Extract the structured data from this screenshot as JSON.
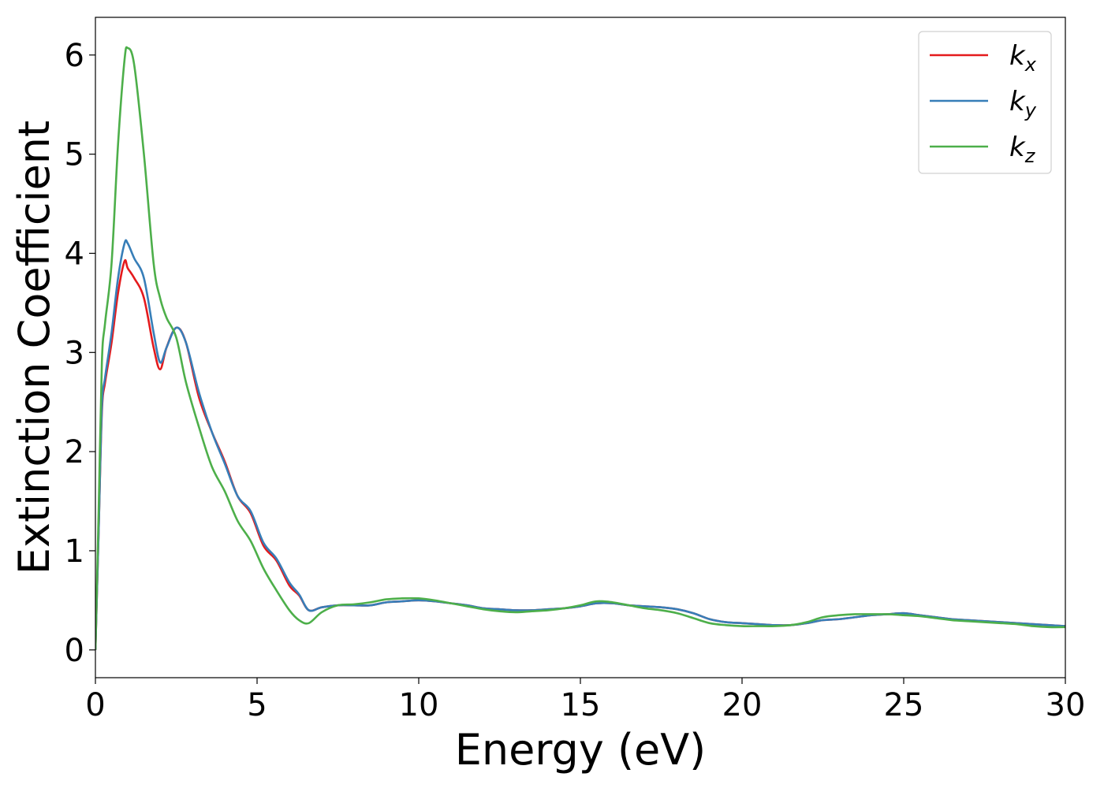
{
  "chart_data": {
    "type": "line",
    "xlabel": "Energy (eV)",
    "ylabel": "Extinction Coefficient",
    "xlim": [
      0,
      30
    ],
    "ylim": [
      -0.28,
      6.38
    ],
    "xticks": [
      0,
      5,
      10,
      15,
      20,
      25,
      30
    ],
    "yticks": [
      0,
      1,
      2,
      3,
      4,
      5,
      6
    ],
    "xtick_labels": [
      "0",
      "5",
      "10",
      "15",
      "20",
      "25",
      "30"
    ],
    "ytick_labels": [
      "0",
      "1",
      "2",
      "3",
      "4",
      "5",
      "6"
    ],
    "grid": false,
    "legend_position": "top-right",
    "series": [
      {
        "name": "k",
        "subscript": "x",
        "color": "#e41a1c",
        "x": [
          0,
          0.1,
          0.2,
          0.3,
          0.5,
          0.7,
          0.9,
          1.0,
          1.2,
          1.5,
          1.8,
          2.0,
          2.2,
          2.5,
          2.8,
          3.2,
          3.6,
          4.0,
          4.4,
          4.8,
          5.2,
          5.6,
          6.0,
          6.3,
          6.6,
          7.0,
          7.5,
          8.0,
          8.5,
          9.0,
          9.5,
          10.0,
          10.5,
          11.0,
          11.5,
          12.0,
          12.5,
          13.0,
          13.5,
          14.0,
          14.5,
          15.0,
          15.5,
          16.0,
          16.5,
          17.0,
          17.5,
          18.0,
          18.5,
          19.0,
          19.5,
          20.0,
          20.5,
          21.0,
          21.5,
          22.0,
          22.5,
          23.0,
          23.5,
          24.0,
          24.5,
          25.0,
          25.5,
          26.0,
          26.5,
          27.0,
          27.5,
          28.0,
          28.5,
          29.0,
          29.5,
          30.0
        ],
        "y": [
          0.0,
          1.2,
          2.4,
          2.7,
          3.1,
          3.6,
          3.92,
          3.85,
          3.75,
          3.55,
          3.05,
          2.83,
          3.05,
          3.25,
          3.1,
          2.55,
          2.2,
          1.9,
          1.55,
          1.38,
          1.05,
          0.9,
          0.65,
          0.55,
          0.4,
          0.43,
          0.45,
          0.45,
          0.45,
          0.48,
          0.49,
          0.5,
          0.49,
          0.47,
          0.45,
          0.42,
          0.41,
          0.4,
          0.4,
          0.41,
          0.42,
          0.44,
          0.47,
          0.47,
          0.45,
          0.44,
          0.43,
          0.41,
          0.37,
          0.31,
          0.28,
          0.27,
          0.26,
          0.25,
          0.25,
          0.27,
          0.3,
          0.31,
          0.33,
          0.35,
          0.36,
          0.37,
          0.35,
          0.33,
          0.31,
          0.3,
          0.29,
          0.28,
          0.27,
          0.26,
          0.25,
          0.24
        ]
      },
      {
        "name": "k",
        "subscript": "y",
        "color": "#377eb8",
        "x": [
          0,
          0.1,
          0.2,
          0.3,
          0.5,
          0.7,
          0.9,
          1.0,
          1.2,
          1.5,
          1.8,
          2.0,
          2.2,
          2.5,
          2.8,
          3.2,
          3.6,
          4.0,
          4.4,
          4.8,
          5.2,
          5.6,
          6.0,
          6.3,
          6.6,
          7.0,
          7.5,
          8.0,
          8.5,
          9.0,
          9.5,
          10.0,
          10.5,
          11.0,
          11.5,
          12.0,
          12.5,
          13.0,
          13.5,
          14.0,
          14.5,
          15.0,
          15.5,
          16.0,
          16.5,
          17.0,
          17.5,
          18.0,
          18.5,
          19.0,
          19.5,
          20.0,
          20.5,
          21.0,
          21.5,
          22.0,
          22.5,
          23.0,
          23.5,
          24.0,
          24.5,
          25.0,
          25.5,
          26.0,
          26.5,
          27.0,
          27.5,
          28.0,
          28.5,
          29.0,
          29.5,
          30.0
        ],
        "y": [
          0.0,
          1.2,
          2.45,
          2.75,
          3.2,
          3.75,
          4.1,
          4.1,
          3.95,
          3.75,
          3.2,
          2.9,
          3.05,
          3.25,
          3.1,
          2.6,
          2.2,
          1.88,
          1.55,
          1.4,
          1.08,
          0.92,
          0.68,
          0.56,
          0.4,
          0.43,
          0.45,
          0.45,
          0.45,
          0.48,
          0.49,
          0.5,
          0.49,
          0.47,
          0.45,
          0.42,
          0.41,
          0.4,
          0.4,
          0.41,
          0.42,
          0.44,
          0.47,
          0.47,
          0.45,
          0.44,
          0.43,
          0.41,
          0.37,
          0.31,
          0.28,
          0.27,
          0.26,
          0.25,
          0.25,
          0.27,
          0.3,
          0.31,
          0.33,
          0.35,
          0.36,
          0.37,
          0.35,
          0.33,
          0.31,
          0.3,
          0.29,
          0.28,
          0.27,
          0.26,
          0.25,
          0.24
        ]
      },
      {
        "name": "k",
        "subscript": "z",
        "color": "#4daf4a",
        "x": [
          0,
          0.1,
          0.2,
          0.3,
          0.5,
          0.7,
          0.9,
          1.0,
          1.2,
          1.5,
          1.8,
          2.0,
          2.2,
          2.5,
          2.8,
          3.2,
          3.6,
          4.0,
          4.4,
          4.8,
          5.2,
          5.6,
          6.0,
          6.3,
          6.6,
          7.0,
          7.5,
          8.0,
          8.5,
          9.0,
          9.5,
          10.0,
          10.5,
          11.0,
          11.5,
          12.0,
          12.5,
          13.0,
          13.5,
          14.0,
          14.5,
          15.0,
          15.5,
          16.0,
          16.5,
          17.0,
          17.5,
          18.0,
          18.5,
          19.0,
          19.5,
          20.0,
          20.5,
          21.0,
          21.5,
          22.0,
          22.5,
          23.0,
          23.5,
          24.0,
          24.5,
          25.0,
          25.5,
          26.0,
          26.5,
          27.0,
          27.5,
          28.0,
          28.5,
          29.0,
          29.5,
          30.0
        ],
        "y": [
          0.0,
          1.4,
          2.9,
          3.3,
          3.9,
          5.1,
          5.95,
          6.07,
          5.9,
          5.0,
          3.9,
          3.55,
          3.35,
          3.15,
          2.7,
          2.25,
          1.85,
          1.6,
          1.3,
          1.1,
          0.82,
          0.6,
          0.4,
          0.3,
          0.27,
          0.38,
          0.45,
          0.46,
          0.48,
          0.51,
          0.52,
          0.52,
          0.5,
          0.47,
          0.44,
          0.41,
          0.39,
          0.38,
          0.39,
          0.4,
          0.42,
          0.45,
          0.49,
          0.48,
          0.45,
          0.42,
          0.4,
          0.37,
          0.32,
          0.27,
          0.25,
          0.24,
          0.24,
          0.24,
          0.25,
          0.28,
          0.33,
          0.35,
          0.36,
          0.36,
          0.36,
          0.35,
          0.34,
          0.32,
          0.3,
          0.29,
          0.28,
          0.27,
          0.26,
          0.24,
          0.23,
          0.23
        ]
      }
    ]
  }
}
